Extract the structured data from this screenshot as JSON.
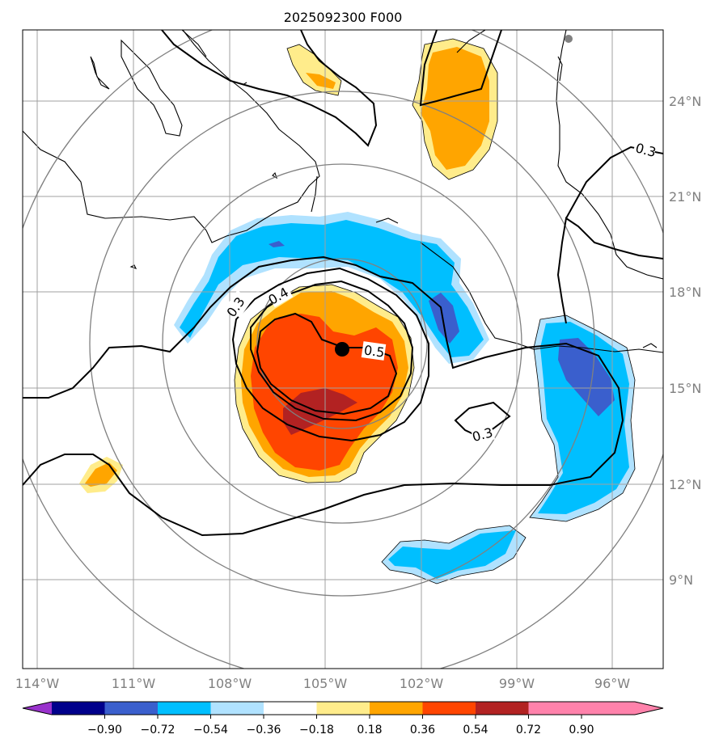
{
  "title": "2025092300 F000",
  "lon_ticks": [
    "114°W",
    "111°W",
    "108°W",
    "105°W",
    "102°W",
    "99°W",
    "96°W"
  ],
  "lat_ticks": [
    "24°N",
    "21°N",
    "18°N",
    "15°N",
    "12°N",
    "9°N"
  ],
  "contour_labels": [
    "0.3",
    "0.4",
    "0.5",
    "0.3",
    "0.3"
  ],
  "colorbar": {
    "levels": [
      "−0.90",
      "−0.72",
      "−0.54",
      "−0.36",
      "−0.18",
      "0.18",
      "0.36",
      "0.54",
      "0.72",
      "0.90"
    ],
    "colors": [
      "#9932cc",
      "#00008b",
      "#3a5fcd",
      "#00bfff",
      "#b0e2ff",
      "#ffffff",
      "#ffec8b",
      "#ffa500",
      "#ff4500",
      "#b22222",
      "#ff82ab"
    ]
  },
  "fill_colors": {
    "light_blue": "#b0e2ff",
    "blue": "#00bfff",
    "dark_blue": "#3a5fcd",
    "yellow": "#ffec8b",
    "orange": "#ffa500",
    "red_orange": "#ff4500",
    "dark_red": "#b22222"
  },
  "center_marker_color": "#000000",
  "station_marker_color": "#808080"
}
